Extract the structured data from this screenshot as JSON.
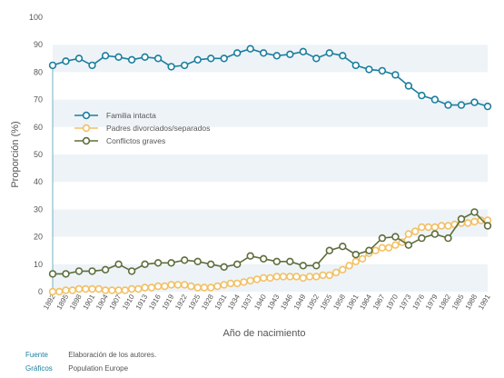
{
  "chart_data": {
    "type": "line",
    "xlabel": "Año de nacimiento",
    "ylabel": "Proporción (%)",
    "ylim": [
      0,
      100
    ],
    "yticks": [
      0,
      10,
      20,
      30,
      40,
      50,
      60,
      70,
      80,
      90,
      100
    ],
    "x_tick_labels": [
      "1892",
      "1895",
      "1898",
      "1901",
      "1904",
      "1907",
      "1910",
      "1913",
      "1916",
      "1919",
      "1922",
      "1925",
      "1928",
      "1931",
      "1934",
      "1937",
      "1940",
      "1943",
      "1946",
      "1949",
      "1952",
      "1955",
      "1958",
      "1961",
      "1964",
      "1967",
      "1970",
      "1973",
      "1976",
      "1979",
      "1982",
      "1985",
      "1988",
      "1991"
    ],
    "grid": "horizontal bands",
    "legend_position": "upper-left",
    "x": [
      1892,
      1893.5,
      1895,
      1896.5,
      1898,
      1899.5,
      1901,
      1902.5,
      1904,
      1905.5,
      1907,
      1908.5,
      1910,
      1911.5,
      1913,
      1914.5,
      1916,
      1917.5,
      1919,
      1920.5,
      1922,
      1923.5,
      1925,
      1926.5,
      1928,
      1929.5,
      1931,
      1932.5,
      1934,
      1935.5,
      1937,
      1938.5,
      1940,
      1941.5,
      1943,
      1944.5,
      1946,
      1947.5,
      1949,
      1950.5,
      1952,
      1953.5,
      1955,
      1956.5,
      1958,
      1959.5,
      1961,
      1962.5,
      1964,
      1965.5,
      1967,
      1968.5,
      1970,
      1971.5,
      1973,
      1974.5,
      1976,
      1977.5,
      1979,
      1980.5,
      1982,
      1983.5,
      1985,
      1986.5,
      1988,
      1989.5,
      1991
    ],
    "series": [
      {
        "name": "Familia intacta",
        "color": "#1b7f9e",
        "x": [
          1892,
          1895,
          1898,
          1901,
          1904,
          1907,
          1910,
          1913,
          1916,
          1919,
          1922,
          1925,
          1928,
          1931,
          1934,
          1937,
          1940,
          1943,
          1946,
          1949,
          1952,
          1955,
          1958,
          1961,
          1964,
          1967,
          1970,
          1973,
          1976,
          1979,
          1982,
          1985,
          1988,
          1991
        ],
        "values": [
          82.5,
          84,
          85,
          82.5,
          86,
          85.5,
          84.5,
          85.5,
          85,
          82,
          82.5,
          84.5,
          85,
          85,
          87,
          88.5,
          87,
          86,
          86.5,
          87.5,
          85,
          87,
          86,
          82.5,
          81,
          80.5,
          79,
          75,
          71.5,
          70,
          68,
          68,
          69,
          67.5
        ]
      },
      {
        "name": "Padres divorciados/separados",
        "color": "#f2c063",
        "x": [
          1892,
          1893.5,
          1895,
          1896.5,
          1898,
          1899.5,
          1901,
          1902.5,
          1904,
          1905.5,
          1907,
          1908.5,
          1910,
          1911.5,
          1913,
          1914.5,
          1916,
          1917.5,
          1919,
          1920.5,
          1922,
          1923.5,
          1925,
          1926.5,
          1928,
          1929.5,
          1931,
          1932.5,
          1934,
          1935.5,
          1937,
          1938.5,
          1940,
          1941.5,
          1943,
          1944.5,
          1946,
          1947.5,
          1949,
          1950.5,
          1952,
          1953.5,
          1955,
          1956.5,
          1958,
          1959.5,
          1961,
          1962.5,
          1964,
          1965.5,
          1967,
          1968.5,
          1970,
          1971.5,
          1973,
          1974.5,
          1976,
          1977.5,
          1979,
          1980.5,
          1982,
          1983.5,
          1985,
          1986.5,
          1988,
          1989.5,
          1991
        ],
        "values": [
          0,
          0,
          0.5,
          0.5,
          1,
          1,
          1,
          1,
          0.5,
          0.5,
          0.5,
          0.5,
          1,
          1,
          1.5,
          1.5,
          2,
          2,
          2.5,
          2.5,
          2.5,
          2,
          1.5,
          1.5,
          1.5,
          2,
          2.5,
          3,
          3,
          3.5,
          4,
          4.5,
          5,
          5,
          5.5,
          5.5,
          5.5,
          5.5,
          5,
          5.5,
          5.5,
          6,
          6,
          7,
          8,
          9.5,
          11,
          12,
          14,
          15,
          16,
          16,
          17,
          18,
          21,
          22,
          23.5,
          23.5,
          23.5,
          24,
          24,
          24.5,
          25,
          25,
          25.5,
          26,
          26
        ]
      },
      {
        "name": "Conflictos graves",
        "color": "#5e6e3c",
        "x": [
          1892,
          1895,
          1898,
          1901,
          1904,
          1907,
          1910,
          1913,
          1916,
          1919,
          1922,
          1925,
          1928,
          1931,
          1934,
          1937,
          1940,
          1943,
          1946,
          1949,
          1952,
          1955,
          1958,
          1961,
          1964,
          1967,
          1970,
          1973,
          1976,
          1979,
          1982,
          1985,
          1988,
          1991
        ],
        "values": [
          6.5,
          6.5,
          7.5,
          7.5,
          8,
          10,
          7.5,
          10,
          10.5,
          10.5,
          11.5,
          11,
          10,
          9,
          10,
          13,
          12,
          11,
          11,
          9.5,
          9.5,
          15,
          16.5,
          13.5,
          15,
          19.5,
          20,
          17,
          19.5,
          21,
          19.5,
          26.5,
          29,
          24
        ]
      }
    ]
  },
  "footer": {
    "source_label": "Fuente",
    "source_value": "Elaboración de los autores.",
    "graphics_label": "Gráficos",
    "graphics_value": "Population Europe"
  }
}
